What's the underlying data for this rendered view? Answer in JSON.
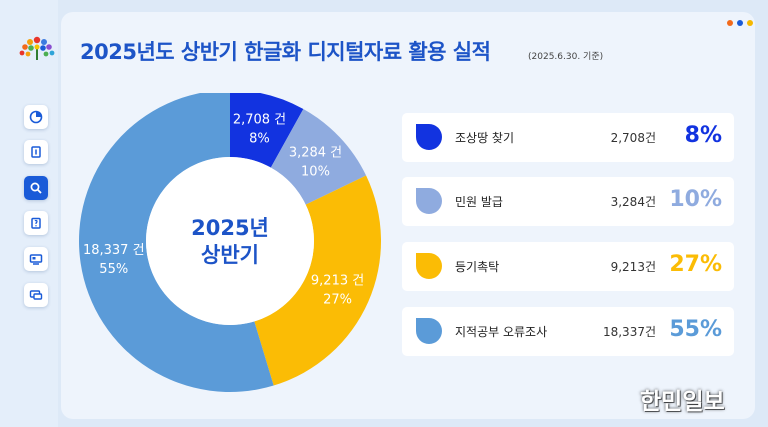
{
  "title": "2025년도 상반기 한글화 디지털자료 활용 실적",
  "subnote": "(2025.6.30. 기준)",
  "watermark": "한민일보",
  "sidebar": {
    "icons": [
      {
        "name": "pie-chart-icon",
        "active": false
      },
      {
        "name": "document-icon",
        "active": false
      },
      {
        "name": "search-icon",
        "active": true
      },
      {
        "name": "clipboard-icon",
        "active": false
      },
      {
        "name": "monitor-icon",
        "active": false
      },
      {
        "name": "chat-icon",
        "active": false
      }
    ]
  },
  "colors": {
    "title": "#1d54c7",
    "dark_blue": "#1233e0",
    "light_blue": "#8fabdf",
    "yellow": "#fbbc05",
    "mid_blue": "#5b9bd8",
    "dots": [
      "#f26a1b",
      "#1a5bd8",
      "#f5b800"
    ]
  },
  "chart_data": {
    "type": "pie",
    "style": "donut",
    "center_label": [
      "2025년",
      "상반기"
    ],
    "unit": "건",
    "slices": [
      {
        "name": "조상땅 찾기",
        "value": 2708,
        "percent": 8,
        "color": "#1233e0",
        "label_value": "2,708 건",
        "label_pct": "8%",
        "label_color": "#ffffff"
      },
      {
        "name": "민원 발급",
        "value": 3284,
        "percent": 10,
        "color": "#8fabdf",
        "label_value": "3,284 건",
        "label_pct": "10%",
        "label_color": "#ffffff"
      },
      {
        "name": "등기촉탁",
        "value": 9213,
        "percent": 27,
        "color": "#fbbc05",
        "label_value": "9,213 건",
        "label_pct": "27%",
        "label_color": "#ffffff"
      },
      {
        "name": "지적공부 오류조사",
        "value": 18337,
        "percent": 55,
        "color": "#5b9bd8",
        "label_value": "18,337 건",
        "label_pct": "55%",
        "label_color": "#ffffff"
      }
    ]
  },
  "legend": [
    {
      "label": "조상땅 찾기",
      "count": "2,708건",
      "pct": "8%",
      "color": "#1233e0"
    },
    {
      "label": "민원 발급",
      "count": "3,284건",
      "pct": "10%",
      "color": "#8fabdf"
    },
    {
      "label": "등기촉탁",
      "count": "9,213건",
      "pct": "27%",
      "color": "#fbbc05"
    },
    {
      "label": "지적공부 오류조사",
      "count": "18,337건",
      "pct": "55%",
      "color": "#5b9bd8"
    }
  ]
}
